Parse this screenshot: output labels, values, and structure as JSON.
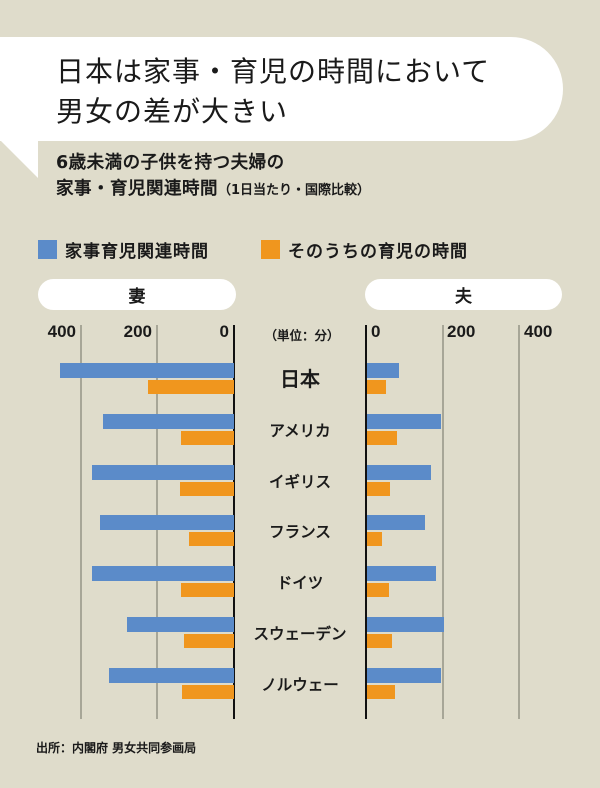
{
  "headline": {
    "line1": "日本は家事・育児の時間において",
    "line2": "男女の差が大きい"
  },
  "subtitle": {
    "line1": "6歳未満の子供を持つ夫婦の",
    "line2_main": "家事・育児関連時間",
    "line2_note": "（1日当たり・国際比較）"
  },
  "legend": [
    {
      "label": "家事育児関連時間",
      "color": "#5b8bc9"
    },
    {
      "label": "そのうちの育児の時間",
      "color": "#f0961e"
    }
  ],
  "panels": {
    "wife": "妻",
    "husband": "夫"
  },
  "axis": {
    "left_ticks": [
      "400",
      "200",
      "0"
    ],
    "right_ticks": [
      "0",
      "200",
      "400"
    ],
    "unit": "（単位：分）"
  },
  "source": "出所：内閣府 男女共同参画局",
  "colors": {
    "background": "#dfdccb",
    "total": "#5b8bc9",
    "childcare": "#f0961e",
    "gridline": "#a7a697",
    "axis": "#111111"
  },
  "chart_data": {
    "type": "bar",
    "orientation": "horizontal-butterfly",
    "title": "日本は家事・育児の時間において男女の差が大きい",
    "subtitle": "6歳未満の子供を持つ夫婦の家事・育児関連時間（1日当たり・国際比較）",
    "unit": "分",
    "categories": [
      "日本",
      "アメリカ",
      "イギリス",
      "フランス",
      "ドイツ",
      "スウェーデン",
      "ノルウェー"
    ],
    "series": [
      {
        "name": "妻 家事育児関連時間",
        "side": "left",
        "values": [
          452,
          340,
          369,
          348,
          369,
          278,
          325
        ]
      },
      {
        "name": "妻 そのうちの育児の時間",
        "side": "left",
        "values": [
          223,
          138,
          140,
          117,
          138,
          130,
          135
        ]
      },
      {
        "name": "夫 家事育児関連時間",
        "side": "right",
        "values": [
          83,
          191,
          166,
          150,
          180,
          200,
          191
        ]
      },
      {
        "name": "夫 そのうちの育児の時間",
        "side": "right",
        "values": [
          49,
          79,
          60,
          39,
          58,
          66,
          73
        ]
      }
    ],
    "xlim_left": [
      0,
      400
    ],
    "xlim_right": [
      0,
      400
    ],
    "ticks": [
      0,
      200,
      400
    ],
    "legend": [
      "家事育児関連時間",
      "そのうちの育児の時間"
    ],
    "legend_position": "top",
    "grid": true,
    "source": "出所：内閣府 男女共同参画局"
  }
}
